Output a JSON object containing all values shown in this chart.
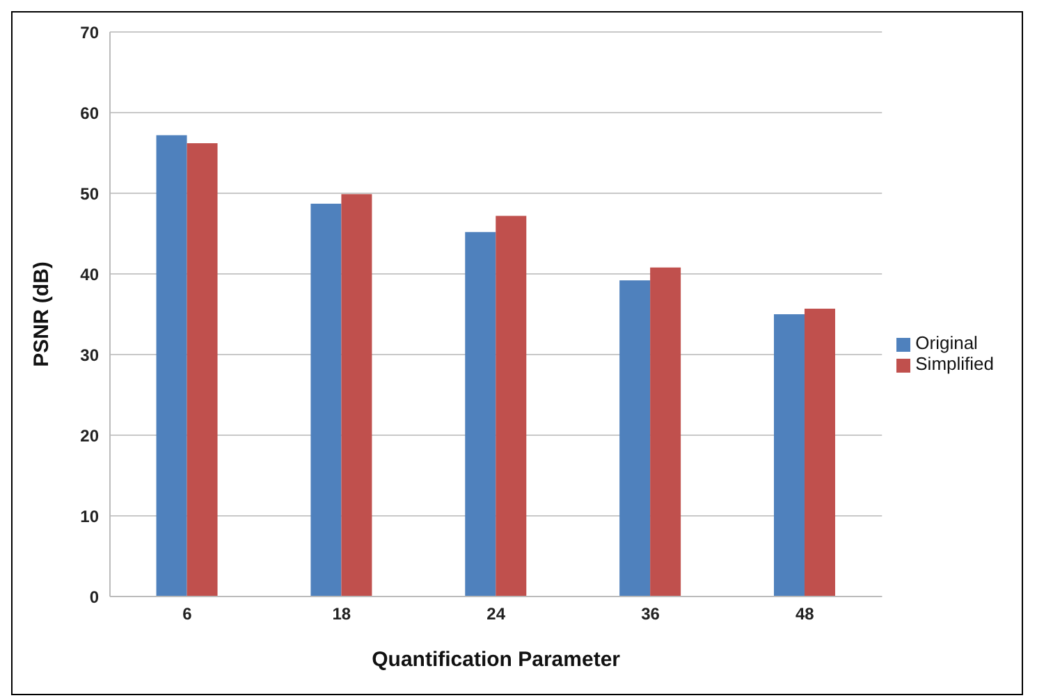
{
  "chart_data": {
    "type": "bar",
    "xlabel": "Quantification Parameter",
    "ylabel": "PSNR (dB)",
    "categories": [
      "6",
      "18",
      "24",
      "36",
      "48"
    ],
    "series": [
      {
        "name": "Original",
        "color": "#4f81bd",
        "values": [
          57.2,
          48.7,
          45.2,
          39.2,
          35.0
        ]
      },
      {
        "name": "Simplified",
        "color": "#c0504d",
        "values": [
          56.2,
          49.9,
          47.2,
          40.8,
          35.7
        ]
      }
    ],
    "ylim": [
      0,
      70
    ],
    "yticks": [
      0,
      10,
      20,
      30,
      40,
      50,
      60,
      70
    ],
    "grid": "y",
    "legend": "right"
  }
}
